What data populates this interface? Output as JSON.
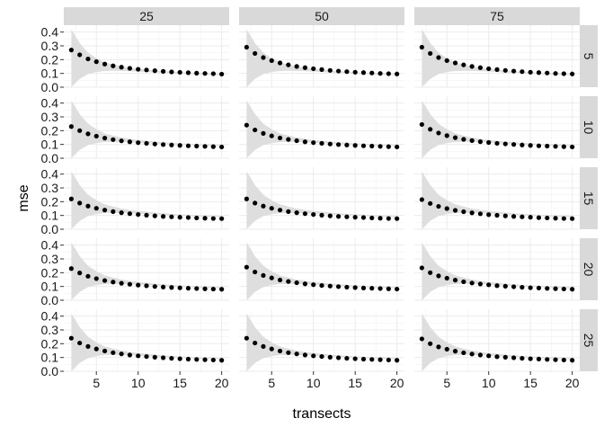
{
  "chart_data": {
    "type": "scatter",
    "title": "",
    "xlabel": "transects",
    "ylabel": "mse",
    "xlim": [
      1.1,
      20.9
    ],
    "ylim": [
      0,
      0.45
    ],
    "x_ticks": [
      5,
      10,
      15,
      20
    ],
    "y_ticks": [
      "0.0",
      "0.1",
      "0.2",
      "0.3",
      "0.4"
    ],
    "grid": true,
    "col_facets": [
      "25",
      "50",
      "75"
    ],
    "row_facets": [
      "5",
      "10",
      "15",
      "20",
      "25"
    ],
    "x": [
      2,
      3,
      4,
      5,
      6,
      7,
      8,
      9,
      10,
      11,
      12,
      13,
      14,
      15,
      16,
      17,
      18,
      19,
      20
    ],
    "series": [
      {
        "row": "5",
        "col": "25",
        "values": [
          0.27,
          0.235,
          0.205,
          0.185,
          0.168,
          0.155,
          0.145,
          0.137,
          0.13,
          0.125,
          0.12,
          0.115,
          0.111,
          0.108,
          0.105,
          0.102,
          0.1,
          0.098,
          0.095
        ]
      },
      {
        "row": "5",
        "col": "50",
        "values": [
          0.29,
          0.245,
          0.215,
          0.193,
          0.176,
          0.162,
          0.151,
          0.142,
          0.134,
          0.128,
          0.122,
          0.117,
          0.113,
          0.109,
          0.106,
          0.103,
          0.1,
          0.098,
          0.096
        ]
      },
      {
        "row": "5",
        "col": "75",
        "values": [
          0.29,
          0.245,
          0.215,
          0.193,
          0.176,
          0.162,
          0.151,
          0.142,
          0.134,
          0.128,
          0.122,
          0.117,
          0.113,
          0.109,
          0.106,
          0.103,
          0.1,
          0.098,
          0.096
        ]
      },
      {
        "row": "10",
        "col": "25",
        "values": [
          0.23,
          0.2,
          0.177,
          0.16,
          0.146,
          0.135,
          0.126,
          0.119,
          0.113,
          0.108,
          0.103,
          0.099,
          0.096,
          0.093,
          0.09,
          0.088,
          0.086,
          0.084,
          0.082
        ]
      },
      {
        "row": "10",
        "col": "50",
        "values": [
          0.24,
          0.205,
          0.18,
          0.162,
          0.147,
          0.136,
          0.127,
          0.119,
          0.113,
          0.108,
          0.103,
          0.099,
          0.096,
          0.093,
          0.09,
          0.088,
          0.086,
          0.084,
          0.082
        ]
      },
      {
        "row": "10",
        "col": "75",
        "values": [
          0.245,
          0.21,
          0.183,
          0.164,
          0.149,
          0.137,
          0.128,
          0.12,
          0.114,
          0.108,
          0.104,
          0.1,
          0.096,
          0.093,
          0.09,
          0.088,
          0.086,
          0.084,
          0.082
        ]
      },
      {
        "row": "15",
        "col": "25",
        "values": [
          0.22,
          0.19,
          0.168,
          0.152,
          0.139,
          0.128,
          0.12,
          0.113,
          0.107,
          0.102,
          0.097,
          0.093,
          0.09,
          0.087,
          0.085,
          0.082,
          0.08,
          0.078,
          0.077
        ]
      },
      {
        "row": "15",
        "col": "50",
        "values": [
          0.22,
          0.19,
          0.168,
          0.152,
          0.139,
          0.128,
          0.12,
          0.113,
          0.107,
          0.102,
          0.097,
          0.093,
          0.09,
          0.087,
          0.085,
          0.082,
          0.08,
          0.078,
          0.077
        ]
      },
      {
        "row": "15",
        "col": "75",
        "values": [
          0.215,
          0.187,
          0.166,
          0.15,
          0.137,
          0.127,
          0.119,
          0.112,
          0.106,
          0.101,
          0.097,
          0.093,
          0.09,
          0.087,
          0.084,
          0.082,
          0.08,
          0.078,
          0.077
        ]
      },
      {
        "row": "20",
        "col": "25",
        "values": [
          0.23,
          0.198,
          0.174,
          0.157,
          0.143,
          0.132,
          0.123,
          0.116,
          0.11,
          0.105,
          0.1,
          0.096,
          0.093,
          0.09,
          0.087,
          0.085,
          0.083,
          0.081,
          0.08
        ]
      },
      {
        "row": "20",
        "col": "50",
        "values": [
          0.24,
          0.205,
          0.18,
          0.162,
          0.147,
          0.136,
          0.127,
          0.119,
          0.113,
          0.107,
          0.103,
          0.099,
          0.095,
          0.092,
          0.089,
          0.087,
          0.085,
          0.083,
          0.081
        ]
      },
      {
        "row": "20",
        "col": "75",
        "values": [
          0.235,
          0.2,
          0.177,
          0.16,
          0.146,
          0.134,
          0.125,
          0.118,
          0.112,
          0.106,
          0.102,
          0.098,
          0.094,
          0.091,
          0.089,
          0.086,
          0.084,
          0.082,
          0.08
        ]
      },
      {
        "row": "25",
        "col": "25",
        "values": [
          0.24,
          0.205,
          0.18,
          0.162,
          0.147,
          0.135,
          0.126,
          0.118,
          0.112,
          0.107,
          0.102,
          0.098,
          0.094,
          0.091,
          0.088,
          0.086,
          0.084,
          0.082,
          0.08
        ]
      },
      {
        "row": "25",
        "col": "50",
        "values": [
          0.24,
          0.205,
          0.18,
          0.162,
          0.147,
          0.135,
          0.126,
          0.118,
          0.112,
          0.107,
          0.102,
          0.098,
          0.094,
          0.091,
          0.088,
          0.086,
          0.084,
          0.082,
          0.08
        ]
      },
      {
        "row": "25",
        "col": "75",
        "values": [
          0.235,
          0.2,
          0.177,
          0.16,
          0.146,
          0.134,
          0.125,
          0.118,
          0.112,
          0.106,
          0.102,
          0.098,
          0.094,
          0.091,
          0.089,
          0.086,
          0.084,
          0.082,
          0.08
        ]
      }
    ],
    "ribbon": {
      "x": [
        2,
        3,
        4,
        5,
        6,
        7,
        8,
        9,
        10,
        11,
        12,
        13,
        14,
        15,
        16,
        17,
        18,
        19,
        20
      ],
      "upper": [
        0.42,
        0.32,
        0.25,
        0.21,
        0.18,
        0.165,
        0.15,
        0.14,
        0.133,
        0.127,
        0.121,
        0.116,
        0.112,
        0.108,
        0.105,
        0.102,
        0.1,
        0.097,
        0.095
      ],
      "lower": [
        0.0,
        0.06,
        0.095,
        0.11,
        0.117,
        0.119,
        0.118,
        0.116,
        0.113,
        0.11,
        0.107,
        0.104,
        0.101,
        0.098,
        0.096,
        0.093,
        0.091,
        0.089,
        0.087
      ]
    },
    "colors": {
      "point": "#000000",
      "ribbon": "#dedede",
      "grid": "#ebebeb",
      "strip": "#d9d9d9",
      "axis": "#333333"
    }
  }
}
